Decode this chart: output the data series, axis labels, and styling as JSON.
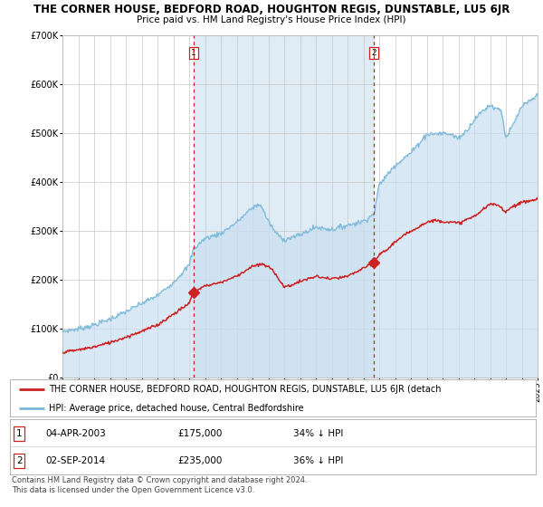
{
  "title": "THE CORNER HOUSE, BEDFORD ROAD, HOUGHTON REGIS, DUNSTABLE, LU5 6JR",
  "subtitle": "Price paid vs. HM Land Registry's House Price Index (HPI)",
  "ylim": [
    0,
    700000
  ],
  "yticks": [
    0,
    100000,
    200000,
    300000,
    400000,
    500000,
    600000,
    700000
  ],
  "ytick_labels": [
    "£0",
    "£100K",
    "£200K",
    "£300K",
    "£400K",
    "£500K",
    "£600K",
    "£700K"
  ],
  "hpi_color": "#7db9d8",
  "hpi_fill_color": "#c8dff0",
  "price_color": "#cc2222",
  "sale1_date_num": 2003.27,
  "sale1_price": 175000,
  "sale2_date_num": 2014.67,
  "sale2_price": 235000,
  "vline_color": "#cc2222",
  "marker_color": "#cc2222",
  "shade_color": "#dae8f4",
  "background_color": "#ffffff",
  "grid_color": "#c8c8c8",
  "legend_label_red": "THE CORNER HOUSE, BEDFORD ROAD, HOUGHTON REGIS, DUNSTABLE, LU5 6JR (detach",
  "legend_label_blue": "HPI: Average price, detached house, Central Bedfordshire",
  "info1_date": "04-APR-2003",
  "info1_price": "£175,000",
  "info1_hpi": "34% ↓ HPI",
  "info2_date": "02-SEP-2014",
  "info2_price": "£235,000",
  "info2_hpi": "36% ↓ HPI",
  "footer": "Contains HM Land Registry data © Crown copyright and database right 2024.\nThis data is licensed under the Open Government Licence v3.0.",
  "title_fontsize": 8.5,
  "subtitle_fontsize": 7.5,
  "axis_fontsize": 7.0,
  "legend_fontsize": 7.0,
  "info_fontsize": 7.5,
  "footer_fontsize": 6.0
}
